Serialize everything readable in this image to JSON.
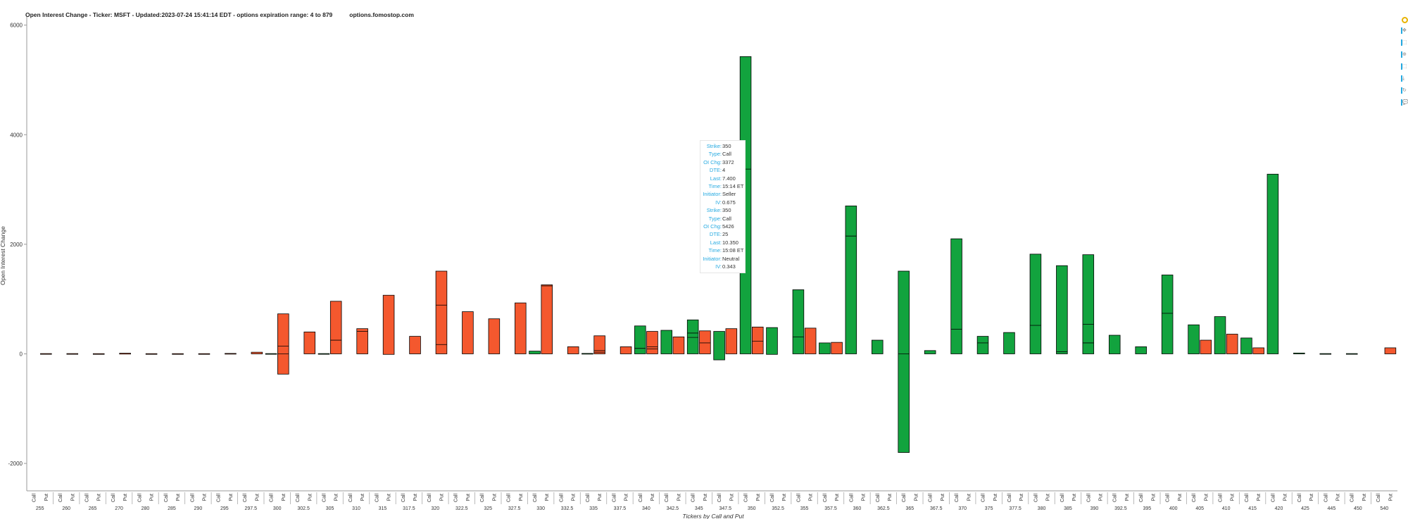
{
  "title": "Open Interest Change - Ticker: MSFT - Updated:2023-07-24 15:41:14 EDT - options expiration range: 4 to 879",
  "site": "options.fomostop.com",
  "toolbar": {
    "tools": [
      "bokeh-logo-icon",
      "pan-icon",
      "box-zoom-icon",
      "wheel-zoom-icon",
      "box-select-icon",
      "save-icon",
      "reset-icon",
      "hover-icon"
    ]
  },
  "colors": {
    "call": "#12a33e",
    "put": "#f4582e",
    "outline": "#000000",
    "tooltip_key": "#26aae1"
  },
  "tooltip": {
    "rows": [
      {
        "k": "Strike:",
        "v": "350"
      },
      {
        "k": "Type:",
        "v": "Call"
      },
      {
        "k": "OI Chg:",
        "v": "3372"
      },
      {
        "k": "DTE:",
        "v": "4"
      },
      {
        "k": "Last:",
        "v": "7.400"
      },
      {
        "k": "Time:",
        "v": "15:14 ET"
      },
      {
        "k": "Initiator:",
        "v": "Seller"
      },
      {
        "k": "IV:",
        "v": "0.675"
      },
      {
        "k": "Strike:",
        "v": "350"
      },
      {
        "k": "Type:",
        "v": "Call"
      },
      {
        "k": "OI Chg:",
        "v": "5426"
      },
      {
        "k": "DTE:",
        "v": "25"
      },
      {
        "k": "Last:",
        "v": "10.350"
      },
      {
        "k": "Time:",
        "v": "15:08 ET"
      },
      {
        "k": "Initiator:",
        "v": "Neutral"
      },
      {
        "k": "IV:",
        "v": "0.343"
      }
    ]
  },
  "chart_data": {
    "type": "bar",
    "stacked": true,
    "xlabel": "Tickers by Call and Put",
    "ylabel": "Open Interest Change",
    "ylim": [
      -2500,
      6150
    ],
    "yticks": [
      -2000,
      0,
      2000,
      4000,
      6000
    ],
    "sub_categories": [
      "Call",
      "Put"
    ],
    "categories": [
      "255",
      "260",
      "265",
      "270",
      "280",
      "285",
      "290",
      "295",
      "297.5",
      "300",
      "302.5",
      "305",
      "310",
      "315",
      "317.5",
      "320",
      "322.5",
      "325",
      "327.5",
      "330",
      "332.5",
      "335",
      "337.5",
      "340",
      "342.5",
      "345",
      "347.5",
      "350",
      "352.5",
      "355",
      "357.5",
      "360",
      "362.5",
      "365",
      "367.5",
      "370",
      "375",
      "377.5",
      "380",
      "385",
      "390",
      "392.5",
      "395",
      "400",
      "405",
      "410",
      "415",
      "420",
      "425",
      "445",
      "450",
      "540"
    ],
    "bars": [
      {
        "strike": "255",
        "type": "Put",
        "top": 5,
        "bottom": -5
      },
      {
        "strike": "260",
        "type": "Put",
        "top": 5,
        "bottom": -5
      },
      {
        "strike": "265",
        "type": "Put",
        "top": 4,
        "bottom": -4
      },
      {
        "strike": "270",
        "type": "Put",
        "top": 12,
        "bottom": -4
      },
      {
        "strike": "280",
        "type": "Put",
        "top": 4,
        "bottom": -4
      },
      {
        "strike": "285",
        "type": "Put",
        "top": 4,
        "bottom": -8
      },
      {
        "strike": "290",
        "type": "Put",
        "top": 4,
        "bottom": -4
      },
      {
        "strike": "295",
        "type": "Put",
        "top": 8,
        "bottom": -4
      },
      {
        "strike": "297.5",
        "type": "Put",
        "top": 30,
        "bottom": 0
      },
      {
        "strike": "300",
        "type": "Call",
        "top": 5,
        "bottom": -5
      },
      {
        "strike": "300",
        "type": "Put",
        "top": 730,
        "bottom": -370,
        "segments": [
          0,
          140
        ]
      },
      {
        "strike": "302.5",
        "type": "Put",
        "top": 400,
        "bottom": 0
      },
      {
        "strike": "305",
        "type": "Call",
        "top": 5,
        "bottom": -5
      },
      {
        "strike": "305",
        "type": "Put",
        "top": 960,
        "bottom": 0,
        "segments": [
          250
        ]
      },
      {
        "strike": "310",
        "type": "Put",
        "top": 460,
        "bottom": 0,
        "segments": [
          410
        ]
      },
      {
        "strike": "315",
        "type": "Put",
        "top": 1070,
        "bottom": -10
      },
      {
        "strike": "317.5",
        "type": "Put",
        "top": 320,
        "bottom": 0
      },
      {
        "strike": "320",
        "type": "Put",
        "top": 1510,
        "bottom": 0,
        "segments": [
          170,
          890
        ]
      },
      {
        "strike": "322.5",
        "type": "Put",
        "top": 770,
        "bottom": 0
      },
      {
        "strike": "325",
        "type": "Put",
        "top": 640,
        "bottom": 0
      },
      {
        "strike": "327.5",
        "type": "Put",
        "top": 930,
        "bottom": 0
      },
      {
        "strike": "330",
        "type": "Call",
        "top": 50,
        "bottom": 0
      },
      {
        "strike": "330",
        "type": "Put",
        "top": 1260,
        "bottom": 0,
        "segments": [
          1240
        ]
      },
      {
        "strike": "332.5",
        "type": "Put",
        "top": 130,
        "bottom": 0
      },
      {
        "strike": "335",
        "type": "Call",
        "top": 8,
        "bottom": -5
      },
      {
        "strike": "335",
        "type": "Put",
        "top": 330,
        "bottom": 0,
        "segments": [
          30,
          60
        ]
      },
      {
        "strike": "337.5",
        "type": "Put",
        "top": 130,
        "bottom": 0
      },
      {
        "strike": "340",
        "type": "Call",
        "top": 510,
        "bottom": 0,
        "segments": [
          100
        ]
      },
      {
        "strike": "340",
        "type": "Put",
        "top": 410,
        "bottom": 0,
        "segments": [
          90,
          130
        ]
      },
      {
        "strike": "342.5",
        "type": "Call",
        "top": 430,
        "bottom": 0
      },
      {
        "strike": "342.5",
        "type": "Put",
        "top": 310,
        "bottom": 0
      },
      {
        "strike": "345",
        "type": "Call",
        "top": 620,
        "bottom": 0,
        "segments": [
          300,
          380
        ]
      },
      {
        "strike": "345",
        "type": "Put",
        "top": 420,
        "bottom": 0,
        "segments": [
          200
        ]
      },
      {
        "strike": "347.5",
        "type": "Call",
        "top": 410,
        "bottom": -110
      },
      {
        "strike": "347.5",
        "type": "Put",
        "top": 460,
        "bottom": 0
      },
      {
        "strike": "350",
        "type": "Call",
        "top": 5426,
        "bottom": 0,
        "segments": [
          3372
        ]
      },
      {
        "strike": "350",
        "type": "Put",
        "top": 490,
        "bottom": 0,
        "segments": [
          230
        ]
      },
      {
        "strike": "352.5",
        "type": "Call",
        "top": 480,
        "bottom": -10
      },
      {
        "strike": "355",
        "type": "Call",
        "top": 1170,
        "bottom": 0,
        "segments": [
          310
        ]
      },
      {
        "strike": "355",
        "type": "Put",
        "top": 470,
        "bottom": 0
      },
      {
        "strike": "357.5",
        "type": "Call",
        "top": 200,
        "bottom": 0
      },
      {
        "strike": "357.5",
        "type": "Put",
        "top": 210,
        "bottom": 0
      },
      {
        "strike": "360",
        "type": "Call",
        "top": 2700,
        "bottom": 0,
        "segments": [
          2150
        ]
      },
      {
        "strike": "362.5",
        "type": "Call",
        "top": 250,
        "bottom": 0
      },
      {
        "strike": "365",
        "type": "Call",
        "top": 1510,
        "bottom": -1800,
        "segments": [
          0
        ]
      },
      {
        "strike": "367.5",
        "type": "Call",
        "top": 60,
        "bottom": 0
      },
      {
        "strike": "370",
        "type": "Call",
        "top": 2100,
        "bottom": 0,
        "segments": [
          450
        ]
      },
      {
        "strike": "375",
        "type": "Call",
        "top": 320,
        "bottom": 0,
        "segments": [
          200
        ]
      },
      {
        "strike": "377.5",
        "type": "Call",
        "top": 390,
        "bottom": 0
      },
      {
        "strike": "380",
        "type": "Call",
        "top": 1820,
        "bottom": 0,
        "segments": [
          520
        ]
      },
      {
        "strike": "385",
        "type": "Call",
        "top": 1610,
        "bottom": 0,
        "segments": [
          40
        ]
      },
      {
        "strike": "390",
        "type": "Call",
        "top": 1810,
        "bottom": 0,
        "segments": [
          200,
          540
        ]
      },
      {
        "strike": "392.5",
        "type": "Call",
        "top": 340,
        "bottom": 0
      },
      {
        "strike": "395",
        "type": "Call",
        "top": 130,
        "bottom": 0
      },
      {
        "strike": "400",
        "type": "Call",
        "top": 1440,
        "bottom": 0,
        "segments": [
          740
        ]
      },
      {
        "strike": "405",
        "type": "Call",
        "top": 530,
        "bottom": 0
      },
      {
        "strike": "405",
        "type": "Put",
        "top": 250,
        "bottom": 0
      },
      {
        "strike": "410",
        "type": "Call",
        "top": 680,
        "bottom": 0
      },
      {
        "strike": "410",
        "type": "Put",
        "top": 360,
        "bottom": 0
      },
      {
        "strike": "415",
        "type": "Call",
        "top": 290,
        "bottom": 0
      },
      {
        "strike": "415",
        "type": "Put",
        "top": 110,
        "bottom": 0
      },
      {
        "strike": "420",
        "type": "Call",
        "top": 3280,
        "bottom": 0
      },
      {
        "strike": "425",
        "type": "Call",
        "top": 15,
        "bottom": 0
      },
      {
        "strike": "445",
        "type": "Call",
        "top": 5,
        "bottom": -5
      },
      {
        "strike": "450",
        "type": "Call",
        "top": 5,
        "bottom": -5
      },
      {
        "strike": "540",
        "type": "Put",
        "top": 110,
        "bottom": 0
      }
    ]
  }
}
